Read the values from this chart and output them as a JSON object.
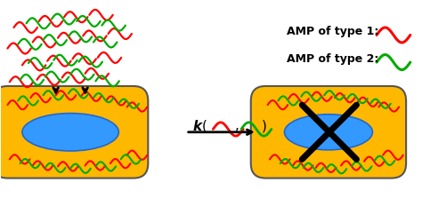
{
  "background_color": "#ffffff",
  "border_color": "#888888",
  "cell_color": "#FFB800",
  "nucleus_color": "#3399FF",
  "red_amp_color": "#FF0000",
  "green_amp_color": "#00AA00",
  "arrow_color": "#000000",
  "text_color": "#000000",
  "legend_text_1": "AMP of type 1:",
  "legend_text_2": "AMP of type 2:",
  "k_label": "k(",
  "figsize": [
    4.74,
    2.41
  ],
  "dpi": 100
}
